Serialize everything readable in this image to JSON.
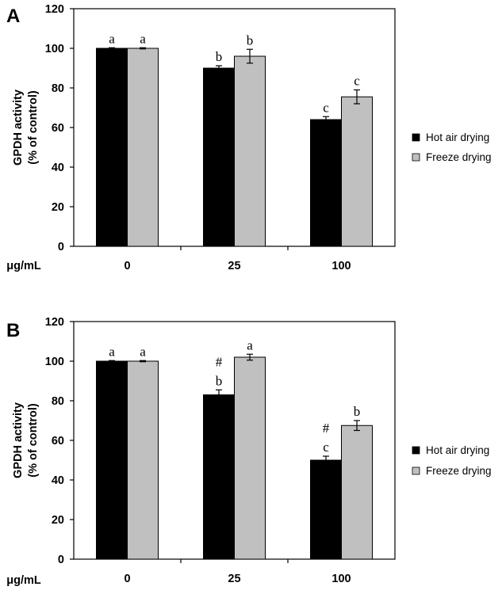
{
  "chart_data": [
    {
      "type": "bar",
      "panel": "A",
      "ylabel_line1": "GPDH activity",
      "ylabel_line2": "(% of control)",
      "xlabel": "μg/mL",
      "ylim": [
        0,
        120
      ],
      "yticks": [
        0,
        20,
        40,
        60,
        80,
        100,
        120
      ],
      "categories": [
        "0",
        "25",
        "100"
      ],
      "series": [
        {
          "name": "Hot air drying",
          "color": "#000000",
          "values": [
            100,
            90,
            64
          ],
          "errors": [
            0.3,
            1.2,
            1.5
          ],
          "letters": [
            "a",
            "b",
            "c"
          ],
          "marks": [
            "",
            "",
            ""
          ]
        },
        {
          "name": "Freeze drying",
          "color": "#c0c0c0",
          "values": [
            100,
            96,
            75.5
          ],
          "errors": [
            0.3,
            3.5,
            3.5
          ],
          "letters": [
            "a",
            "b",
            "c"
          ],
          "marks": [
            "",
            "",
            ""
          ]
        }
      ],
      "legend_position": "right"
    },
    {
      "type": "bar",
      "panel": "B",
      "ylabel_line1": "GPDH activity",
      "ylabel_line2": "(% of control)",
      "xlabel": "μg/mL",
      "ylim": [
        0,
        120
      ],
      "yticks": [
        0,
        20,
        40,
        60,
        80,
        100,
        120
      ],
      "categories": [
        "0",
        "25",
        "100"
      ],
      "series": [
        {
          "name": "Hot air drying",
          "color": "#000000",
          "values": [
            100,
            83,
            50
          ],
          "errors": [
            0.3,
            2.5,
            2.0
          ],
          "letters": [
            "a",
            "b",
            "c"
          ],
          "marks": [
            "",
            "#",
            "#"
          ]
        },
        {
          "name": "Freeze drying",
          "color": "#c0c0c0",
          "values": [
            100,
            102,
            67.5
          ],
          "errors": [
            0.3,
            1.5,
            2.5
          ],
          "letters": [
            "a",
            "a",
            "b"
          ],
          "marks": [
            "",
            "",
            ""
          ]
        }
      ],
      "legend_position": "right"
    }
  ]
}
